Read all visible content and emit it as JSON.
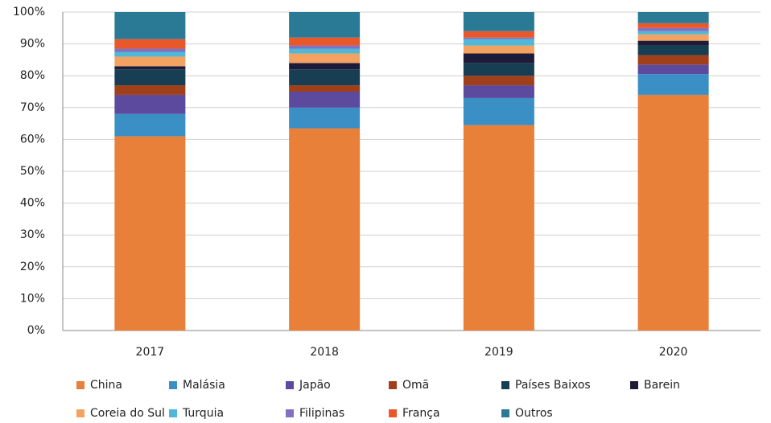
{
  "chart_data": {
    "type": "stacked_bar",
    "categories": [
      "2017",
      "2018",
      "2019",
      "2020"
    ],
    "series": [
      {
        "name": "China",
        "color": "#e8803a",
        "values": [
          61,
          63.5,
          64.5,
          74
        ]
      },
      {
        "name": "Malásia",
        "color": "#3a8fc4",
        "values": [
          7,
          6.5,
          8.5,
          6.5
        ]
      },
      {
        "name": "Japão",
        "color": "#5b4a9e",
        "values": [
          6,
          5,
          4,
          3
        ]
      },
      {
        "name": "Omã",
        "color": "#a0401a",
        "values": [
          3,
          2,
          3,
          3
        ]
      },
      {
        "name": "Países Baixos",
        "color": "#173e52",
        "values": [
          5,
          5,
          4,
          3
        ]
      },
      {
        "name": "Barein",
        "color": "#1c1c3a",
        "values": [
          1,
          2,
          3,
          1.5
        ]
      },
      {
        "name": "Coreia do Sul",
        "color": "#f4a262",
        "values": [
          3,
          3,
          2.5,
          2
        ]
      },
      {
        "name": "Turquia",
        "color": "#4fb8d8",
        "values": [
          1.5,
          1.5,
          2,
          1
        ]
      },
      {
        "name": "Filipinas",
        "color": "#8270c0",
        "values": [
          1,
          1,
          0.5,
          1
        ]
      },
      {
        "name": "França",
        "color": "#e8582a",
        "values": [
          3,
          2.5,
          2,
          1.5
        ]
      },
      {
        "name": "Outros",
        "color": "#2a7a96",
        "values": [
          8.5,
          8,
          6,
          3.5
        ]
      }
    ],
    "ylim": [
      0,
      100
    ],
    "yticks": [
      {
        "value": 0,
        "label": "0%"
      },
      {
        "value": 10,
        "label": "10%"
      },
      {
        "value": 20,
        "label": "20%"
      },
      {
        "value": 30,
        "label": "30%"
      },
      {
        "value": 40,
        "label": "40%"
      },
      {
        "value": 50,
        "label": "50%"
      },
      {
        "value": 60,
        "label": "60%"
      },
      {
        "value": 70,
        "label": "70%"
      },
      {
        "value": 80,
        "label": "80%"
      },
      {
        "value": 90,
        "label": "90%"
      },
      {
        "value": 100,
        "label": "100%"
      }
    ],
    "grid": true
  }
}
